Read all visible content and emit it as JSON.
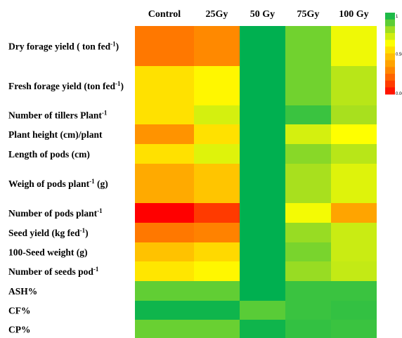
{
  "chart_data": {
    "type": "heatmap",
    "title": "",
    "xlabel": "",
    "ylabel": "",
    "columns": [
      "Control",
      "25Gy",
      "50 Gy",
      "75Gy",
      "100 Gy"
    ],
    "rows": [
      "Dry forage yield ( ton fed-1)",
      "Fresh forage yield (ton fed-1)",
      "Number of tillers Plant-1",
      "Plant height (cm)/plant",
      "Length of pods (cm)",
      "Weigh of pods plant-1 (g)",
      "Number of pods plant-1",
      "Seed yield (kg fed-1)",
      "100-Seed weight (g)",
      "Number of seeds pod-1",
      "ASH%",
      "CF%",
      "CP%"
    ],
    "values": [
      [
        0.25,
        0.3,
        1.0,
        0.85,
        0.65
      ],
      [
        0.55,
        0.6,
        1.0,
        0.85,
        0.75
      ],
      [
        0.55,
        0.7,
        1.0,
        0.92,
        0.78
      ],
      [
        0.33,
        0.55,
        1.0,
        0.7,
        0.62
      ],
      [
        0.55,
        0.68,
        1.0,
        0.82,
        0.75
      ],
      [
        0.4,
        0.48,
        1.0,
        0.78,
        0.68
      ],
      [
        0.0,
        0.12,
        1.0,
        0.64,
        0.38
      ],
      [
        0.25,
        0.28,
        1.0,
        0.8,
        0.72
      ],
      [
        0.47,
        0.53,
        1.0,
        0.84,
        0.72
      ],
      [
        0.56,
        0.6,
        1.0,
        0.8,
        0.73
      ],
      [
        0.87,
        0.87,
        1.0,
        0.92,
        0.92
      ],
      [
        0.98,
        0.98,
        0.88,
        0.92,
        0.93
      ],
      [
        0.86,
        0.86,
        0.98,
        0.93,
        0.92
      ]
    ],
    "colorscale": {
      "min": 0.0,
      "max": 1.0,
      "stops": [
        {
          "v": 0.0,
          "color": "#ff0000"
        },
        {
          "v": 0.25,
          "color": "#ff7800"
        },
        {
          "v": 0.5,
          "color": "#ffcc00"
        },
        {
          "v": 0.62,
          "color": "#ffff00"
        },
        {
          "v": 0.78,
          "color": "#a8e01e"
        },
        {
          "v": 0.9,
          "color": "#49c83c"
        },
        {
          "v": 1.0,
          "color": "#00b050"
        }
      ],
      "ticks": [
        {
          "v": 1.0,
          "label": "1"
        },
        {
          "v": 0.5,
          "label": "0.50"
        },
        {
          "v": 0.0,
          "label": "0.00"
        }
      ]
    }
  }
}
